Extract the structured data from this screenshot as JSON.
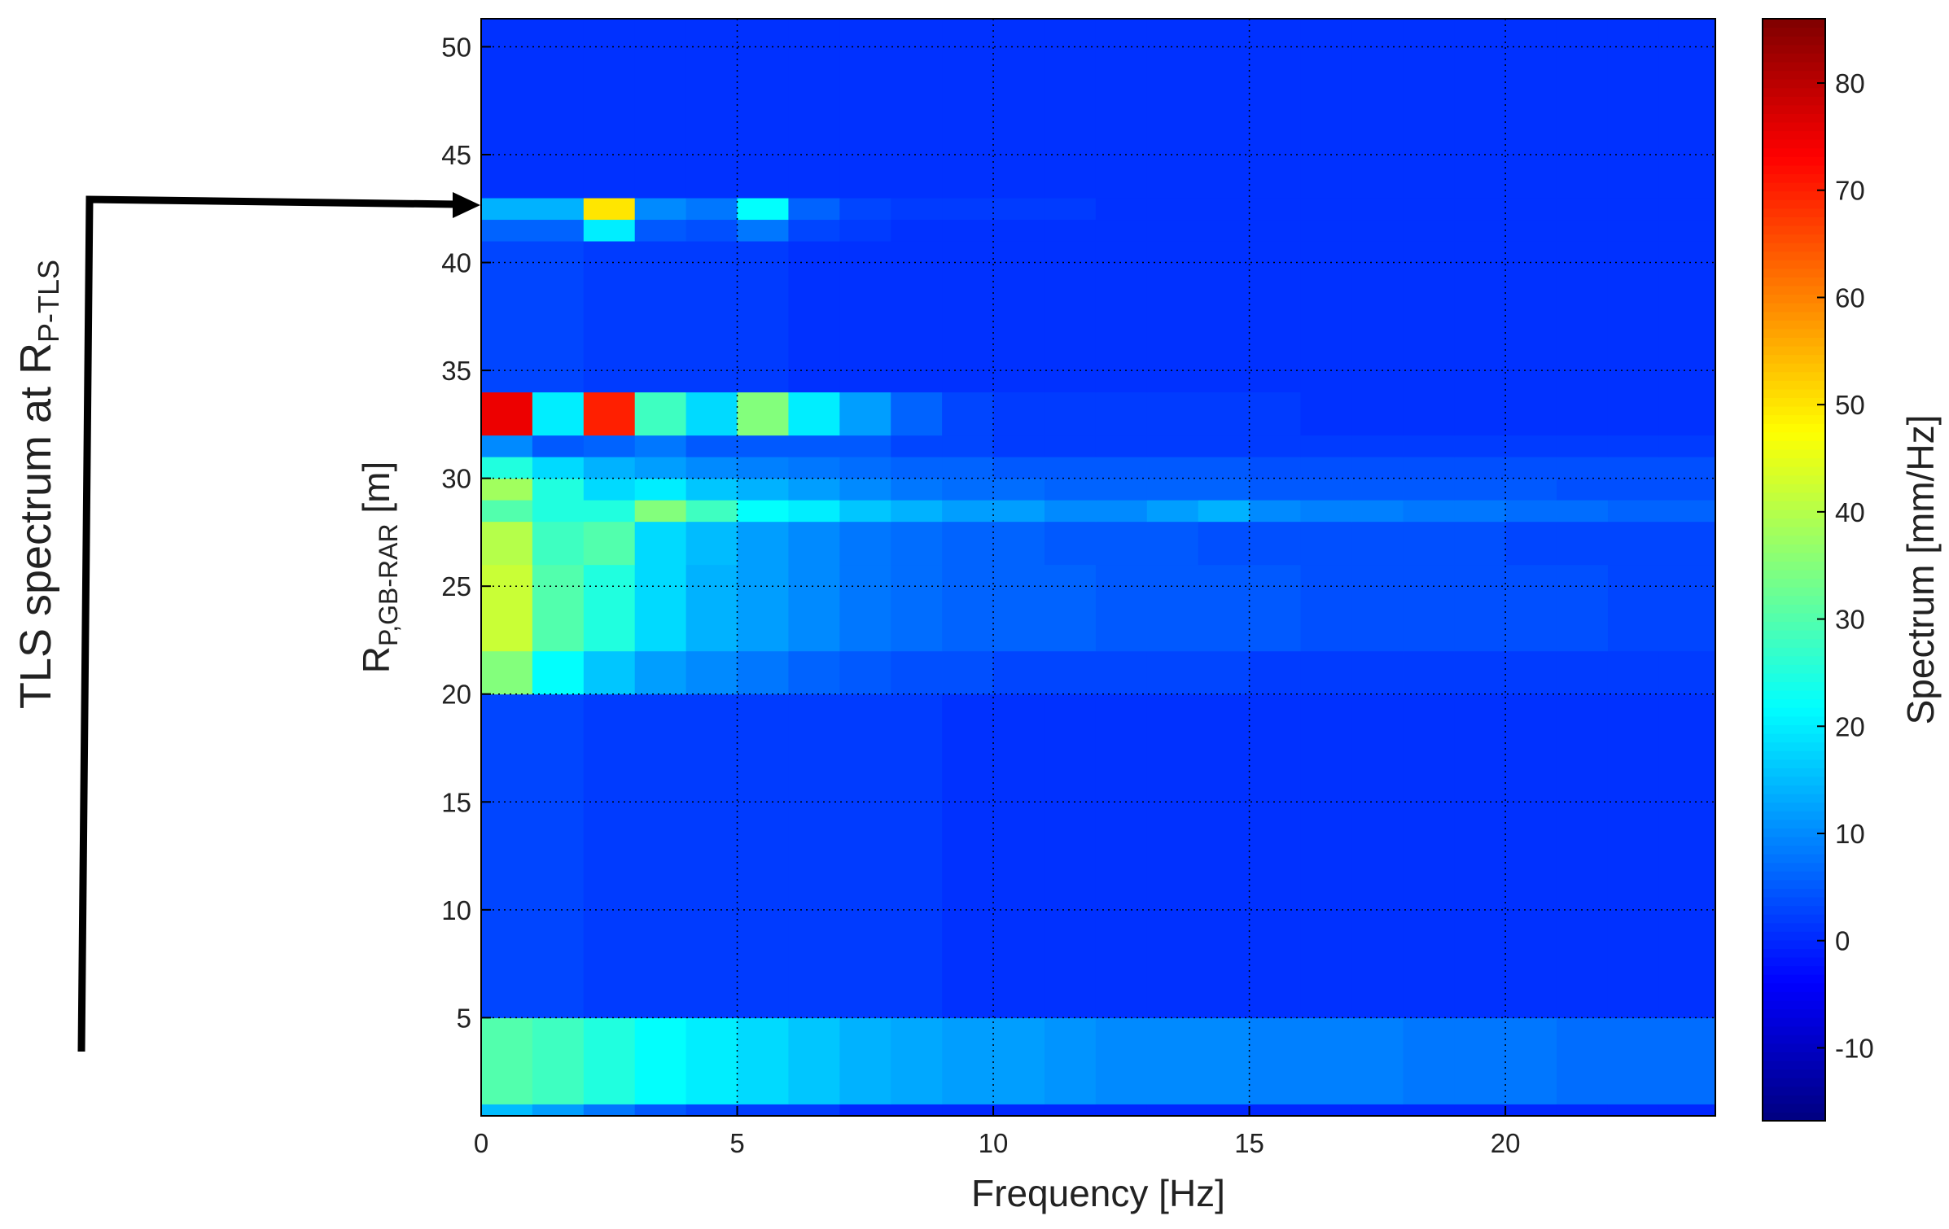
{
  "chart_data": {
    "type": "heatmap",
    "x_label": "Frequency [Hz]",
    "y_label": {
      "main": "R",
      "sub": "P,GB-RAR",
      "unit": " [m]"
    },
    "colorbar_label": "Spectrum [mm/Hz]",
    "annotation": {
      "main": "TLS spectrum at R",
      "sub": "P-TLS"
    },
    "xlim": [
      0,
      24.1
    ],
    "ylim": [
      0.45,
      51.3
    ],
    "xticks": [
      0,
      5,
      10,
      15,
      20
    ],
    "yticks": [
      5,
      10,
      15,
      20,
      25,
      30,
      35,
      40,
      45,
      50
    ],
    "clim": [
      -16.8,
      86
    ],
    "cticks": [
      -10,
      0,
      10,
      20,
      30,
      40,
      50,
      60,
      70,
      80
    ],
    "colormap": "jet",
    "grid": true,
    "x_bins": [
      0,
      1,
      2,
      3,
      4,
      5,
      6,
      7,
      8,
      9,
      10,
      11,
      12,
      13,
      14,
      15,
      16,
      17,
      18,
      19,
      20,
      21,
      22,
      23,
      24.1
    ],
    "y_bins": [
      0.45,
      1,
      5,
      20,
      22,
      26,
      28,
      29,
      30,
      31,
      32,
      34,
      41,
      42,
      43,
      51.3
    ],
    "z": [
      [
        15,
        12,
        8,
        5,
        3,
        2,
        2,
        0,
        0,
        0,
        0,
        0,
        0,
        0,
        0,
        0,
        0,
        0,
        0,
        0,
        0,
        0,
        0,
        0
      ],
      [
        30,
        28,
        25,
        22,
        20,
        18,
        16,
        14,
        13,
        12,
        12,
        11,
        10,
        10,
        10,
        9,
        9,
        9,
        8,
        8,
        8,
        7,
        7,
        7
      ],
      [
        3,
        3,
        2,
        2,
        2,
        2,
        2,
        2,
        2,
        1,
        1,
        1,
        1,
        1,
        1,
        1,
        1,
        1,
        1,
        1,
        1,
        1,
        1,
        1
      ],
      [
        35,
        22,
        16,
        12,
        10,
        8,
        6,
        5,
        4,
        4,
        3,
        3,
        3,
        3,
        3,
        2,
        2,
        2,
        2,
        2,
        2,
        2,
        2,
        2
      ],
      [
        42,
        30,
        25,
        18,
        14,
        12,
        10,
        8,
        7,
        6,
        6,
        6,
        5,
        5,
        5,
        5,
        4,
        4,
        4,
        4,
        4,
        4,
        3,
        3
      ],
      [
        40,
        28,
        30,
        18,
        15,
        12,
        10,
        8,
        7,
        6,
        6,
        5,
        5,
        5,
        4,
        4,
        4,
        4,
        4,
        4,
        3,
        3,
        3,
        3
      ],
      [
        30,
        25,
        25,
        35,
        28,
        22,
        20,
        16,
        14,
        12,
        12,
        10,
        10,
        12,
        14,
        10,
        9,
        9,
        8,
        8,
        7,
        7,
        6,
        6
      ],
      [
        38,
        25,
        18,
        20,
        16,
        14,
        12,
        10,
        8,
        7,
        7,
        6,
        6,
        6,
        6,
        5,
        5,
        5,
        5,
        5,
        5,
        4,
        4,
        4
      ],
      [
        25,
        18,
        14,
        12,
        10,
        9,
        8,
        7,
        6,
        6,
        5,
        5,
        5,
        5,
        5,
        4,
        4,
        4,
        4,
        4,
        4,
        4,
        4,
        4
      ],
      [
        10,
        5,
        6,
        8,
        5,
        5,
        5,
        5,
        3,
        3,
        2,
        2,
        2,
        2,
        2,
        2,
        2,
        2,
        2,
        2,
        2,
        2,
        2,
        2
      ],
      [
        75,
        20,
        70,
        28,
        18,
        35,
        20,
        12,
        6,
        3,
        2,
        2,
        2,
        2,
        2,
        2,
        1,
        1,
        1,
        1,
        1,
        1,
        1,
        1
      ],
      [
        3,
        3,
        2,
        2,
        2,
        2,
        1,
        1,
        1,
        1,
        1,
        1,
        1,
        1,
        1,
        1,
        1,
        1,
        1,
        1,
        1,
        1,
        1,
        1
      ],
      [
        6,
        6,
        20,
        5,
        4,
        8,
        3,
        2,
        1,
        1,
        1,
        1,
        1,
        1,
        1,
        1,
        1,
        1,
        1,
        1,
        1,
        1,
        1,
        1
      ],
      [
        14,
        14,
        50,
        10,
        8,
        22,
        6,
        3,
        2,
        2,
        2,
        2,
        1,
        1,
        1,
        1,
        1,
        1,
        1,
        1,
        1,
        1,
        1,
        1
      ],
      [
        1,
        1,
        1,
        1,
        1,
        1,
        1,
        1,
        1,
        1,
        1,
        1,
        1,
        1,
        1,
        1,
        1,
        1,
        1,
        1,
        1,
        1,
        1,
        1
      ]
    ]
  }
}
